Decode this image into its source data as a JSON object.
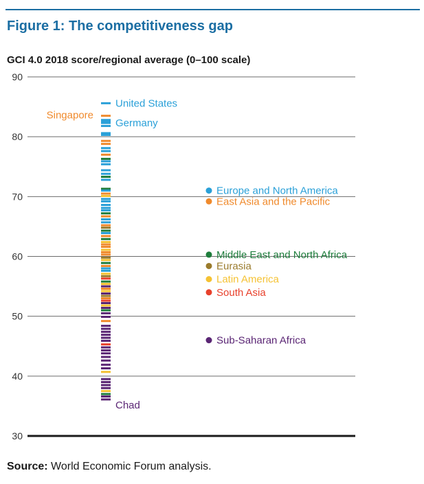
{
  "title": "Figure 1: The competitiveness gap",
  "subtitle": "GCI 4.0 2018 score/regional average (0–100 scale)",
  "source": {
    "label": "Source:",
    "text": "World Economic Forum analysis."
  },
  "colors": {
    "europe_north_america": "#2aa0d8",
    "east_asia_pacific": "#f08a2c",
    "middle_east_north_africa": "#1e7d3c",
    "eurasia": "#9a7b2c",
    "latin_america": "#f5c233",
    "south_asia": "#e8412c",
    "sub_saharan_africa": "#5a2574"
  },
  "chart_data": {
    "type": "scatter",
    "title": "Figure 1: The competitiveness gap",
    "ylabel": "GCI 4.0 2018 score/regional average (0–100 scale)",
    "ylim": [
      30,
      90
    ],
    "yticks": [
      30,
      40,
      50,
      60,
      70,
      80,
      90
    ],
    "grid": true,
    "country_scores": [
      {
        "score": 85.6,
        "region": "europe_north_america",
        "label": "United States"
      },
      {
        "score": 83.5,
        "region": "east_asia_pacific",
        "label": "Singapore"
      },
      {
        "score": 82.8,
        "region": "europe_north_america",
        "label": "Germany"
      },
      {
        "score": 82.5,
        "region": "europe_north_america"
      },
      {
        "score": 82.3,
        "region": "europe_north_america"
      },
      {
        "score": 81.8,
        "region": "europe_north_america"
      },
      {
        "score": 80.6,
        "region": "europe_north_america"
      },
      {
        "score": 80.3,
        "region": "europe_north_america"
      },
      {
        "score": 79.3,
        "region": "east_asia_pacific"
      },
      {
        "score": 78.8,
        "region": "east_asia_pacific"
      },
      {
        "score": 78.1,
        "region": "europe_north_america"
      },
      {
        "score": 77.6,
        "region": "europe_north_america"
      },
      {
        "score": 77.0,
        "region": "east_asia_pacific"
      },
      {
        "score": 76.3,
        "region": "middle_east_north_africa"
      },
      {
        "score": 75.9,
        "region": "europe_north_america"
      },
      {
        "score": 75.4,
        "region": "europe_north_america"
      },
      {
        "score": 74.4,
        "region": "europe_north_america"
      },
      {
        "score": 73.8,
        "region": "europe_north_america"
      },
      {
        "score": 73.3,
        "region": "middle_east_north_africa"
      },
      {
        "score": 72.8,
        "region": "europe_north_america"
      },
      {
        "score": 71.3,
        "region": "middle_east_north_africa"
      },
      {
        "score": 71.0,
        "region": "europe_north_america"
      },
      {
        "score": 70.5,
        "region": "east_asia_pacific"
      },
      {
        "score": 70.1,
        "region": "latin_america"
      },
      {
        "score": 69.6,
        "region": "europe_north_america"
      },
      {
        "score": 69.2,
        "region": "europe_north_america"
      },
      {
        "score": 68.6,
        "region": "europe_north_america"
      },
      {
        "score": 68.1,
        "region": "europe_north_america"
      },
      {
        "score": 67.7,
        "region": "europe_north_america"
      },
      {
        "score": 67.2,
        "region": "middle_east_north_africa"
      },
      {
        "score": 66.7,
        "region": "east_asia_pacific"
      },
      {
        "score": 66.2,
        "region": "europe_north_america"
      },
      {
        "score": 65.7,
        "region": "europe_north_america"
      },
      {
        "score": 65.2,
        "region": "east_asia_pacific"
      },
      {
        "score": 64.8,
        "region": "eurasia"
      },
      {
        "score": 64.3,
        "region": "middle_east_north_africa"
      },
      {
        "score": 63.9,
        "region": "europe_north_america"
      },
      {
        "score": 63.4,
        "region": "east_asia_pacific"
      },
      {
        "score": 62.9,
        "region": "middle_east_north_africa"
      },
      {
        "score": 62.4,
        "region": "latin_america"
      },
      {
        "score": 62.0,
        "region": "east_asia_pacific"
      },
      {
        "score": 61.6,
        "region": "east_asia_pacific"
      },
      {
        "score": 61.1,
        "region": "latin_america"
      },
      {
        "score": 60.7,
        "region": "east_asia_pacific"
      },
      {
        "score": 60.3,
        "region": "east_asia_pacific"
      },
      {
        "score": 59.8,
        "region": "eurasia"
      },
      {
        "score": 59.4,
        "region": "latin_america"
      },
      {
        "score": 58.9,
        "region": "middle_east_north_africa"
      },
      {
        "score": 58.4,
        "region": "east_asia_pacific"
      },
      {
        "score": 58.0,
        "region": "europe_north_america"
      },
      {
        "score": 57.6,
        "region": "europe_north_america"
      },
      {
        "score": 57.1,
        "region": "latin_america"
      },
      {
        "score": 56.7,
        "region": "eurasia"
      },
      {
        "score": 56.3,
        "region": "south_asia"
      },
      {
        "score": 55.8,
        "region": "middle_east_north_africa"
      },
      {
        "score": 55.4,
        "region": "latin_america"
      },
      {
        "score": 55.0,
        "region": "sub_saharan_africa"
      },
      {
        "score": 54.6,
        "region": "east_asia_pacific"
      },
      {
        "score": 54.2,
        "region": "latin_america"
      },
      {
        "score": 53.8,
        "region": "sub_saharan_africa"
      },
      {
        "score": 53.4,
        "region": "eurasia"
      },
      {
        "score": 53.0,
        "region": "east_asia_pacific"
      },
      {
        "score": 52.6,
        "region": "south_asia"
      },
      {
        "score": 52.2,
        "region": "sub_saharan_africa"
      },
      {
        "score": 51.8,
        "region": "latin_america"
      },
      {
        "score": 51.4,
        "region": "sub_saharan_africa"
      },
      {
        "score": 51.0,
        "region": "middle_east_north_africa"
      },
      {
        "score": 50.5,
        "region": "sub_saharan_africa"
      },
      {
        "score": 49.9,
        "region": "sub_saharan_africa"
      },
      {
        "score": 49.2,
        "region": "east_asia_pacific"
      },
      {
        "score": 48.4,
        "region": "sub_saharan_africa"
      },
      {
        "score": 47.9,
        "region": "sub_saharan_africa"
      },
      {
        "score": 47.4,
        "region": "sub_saharan_africa"
      },
      {
        "score": 46.9,
        "region": "sub_saharan_africa"
      },
      {
        "score": 46.4,
        "region": "sub_saharan_africa"
      },
      {
        "score": 45.9,
        "region": "sub_saharan_africa"
      },
      {
        "score": 45.3,
        "region": "south_asia"
      },
      {
        "score": 44.8,
        "region": "sub_saharan_africa"
      },
      {
        "score": 44.3,
        "region": "sub_saharan_africa"
      },
      {
        "score": 43.8,
        "region": "sub_saharan_africa"
      },
      {
        "score": 43.2,
        "region": "sub_saharan_africa"
      },
      {
        "score": 42.6,
        "region": "sub_saharan_africa"
      },
      {
        "score": 41.9,
        "region": "sub_saharan_africa"
      },
      {
        "score": 41.3,
        "region": "sub_saharan_africa"
      },
      {
        "score": 40.7,
        "region": "latin_america"
      },
      {
        "score": 39.5,
        "region": "sub_saharan_africa"
      },
      {
        "score": 39.0,
        "region": "sub_saharan_africa"
      },
      {
        "score": 38.5,
        "region": "sub_saharan_africa"
      },
      {
        "score": 38.0,
        "region": "sub_saharan_africa"
      },
      {
        "score": 37.5,
        "region": "latin_america"
      },
      {
        "score": 37.0,
        "region": "middle_east_north_africa"
      },
      {
        "score": 36.6,
        "region": "sub_saharan_africa"
      },
      {
        "score": 36.1,
        "region": "sub_saharan_africa",
        "label": "Chad"
      }
    ],
    "regional_averages": [
      {
        "name": "Europe and North America",
        "region": "europe_north_america",
        "value": 71.0
      },
      {
        "name": "East Asia and the Pacific",
        "region": "east_asia_pacific",
        "value": 69.2
      },
      {
        "name": "Middle East and North Africa",
        "region": "middle_east_north_africa",
        "value": 60.3
      },
      {
        "name": "Eurasia",
        "region": "eurasia",
        "value": 58.4
      },
      {
        "name": "Latin America",
        "region": "latin_america",
        "value": 56.2
      },
      {
        "name": "South Asia",
        "region": "south_asia",
        "value": 54.0
      },
      {
        "name": "Sub-Saharan Africa",
        "region": "sub_saharan_africa",
        "value": 46.0
      }
    ]
  }
}
